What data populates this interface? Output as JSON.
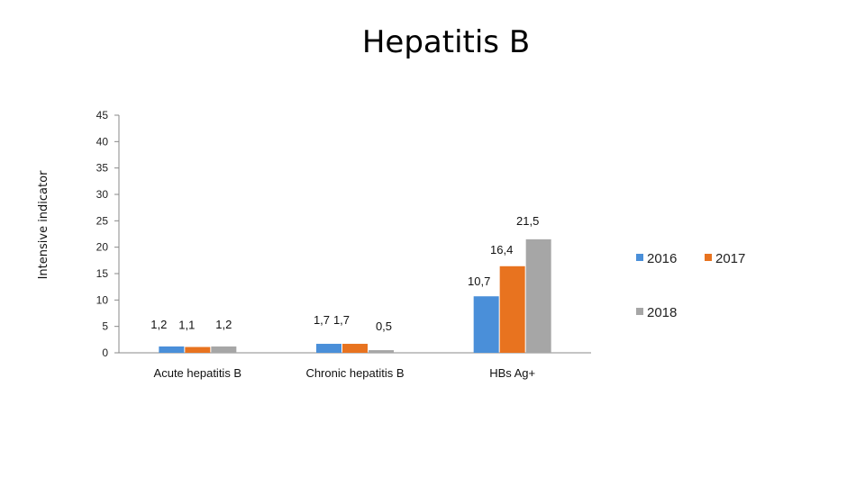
{
  "chart_data": {
    "type": "bar",
    "title": "Hepatitis B",
    "ylabel": "Intensive indicator",
    "xlabel": "",
    "ylim": [
      0,
      45
    ],
    "yticks": [
      0,
      5,
      10,
      15,
      20,
      25,
      30,
      35,
      40,
      45
    ],
    "grid": false,
    "legend_position": "right",
    "categories": [
      "Acute hepatitis B",
      "Chronic hepatitis B",
      "HBs Ag+"
    ],
    "series": [
      {
        "name": "2016",
        "color": "#4a8fd9",
        "values": [
          1.2,
          1.7,
          10.7
        ],
        "labels": [
          "1,2",
          "1,7",
          "10,7"
        ]
      },
      {
        "name": "2017",
        "color": "#e8731f",
        "values": [
          1.1,
          1.7,
          16.4
        ],
        "labels": [
          "1,1",
          "1,7",
          "16,4"
        ]
      },
      {
        "name": "2018",
        "color": "#a6a6a6",
        "values": [
          1.2,
          0.5,
          21.5
        ],
        "labels": [
          "1,2",
          "0,5",
          "21,5"
        ]
      }
    ]
  }
}
